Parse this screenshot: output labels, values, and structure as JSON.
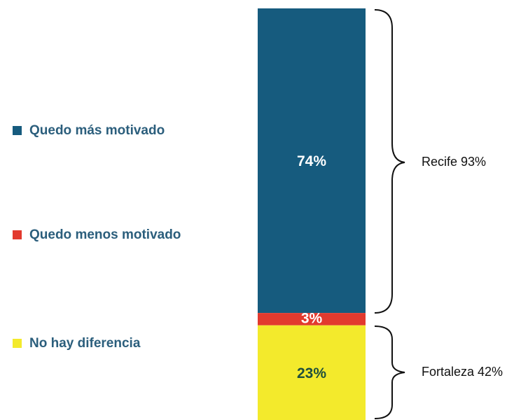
{
  "chart_data": {
    "type": "bar",
    "stacked": true,
    "categories": [
      null
    ],
    "series": [
      {
        "name": "Quedo más motivado",
        "color": "#165b7e",
        "values": [
          74
        ],
        "value_labels": [
          "74%"
        ],
        "label_color": "#ffffff"
      },
      {
        "name": "Quedo menos motivado",
        "color": "#e23a2e",
        "values": [
          3
        ],
        "value_labels": [
          "3%"
        ],
        "label_color": "#ffffff"
      },
      {
        "name": "No hay diferencia",
        "color": "#f3ea2c",
        "values": [
          23
        ],
        "value_labels": [
          "23%"
        ],
        "label_color": "#1f4f3c"
      }
    ],
    "annotations": [
      "Recife 93%",
      "Fortaleza 42%"
    ]
  }
}
